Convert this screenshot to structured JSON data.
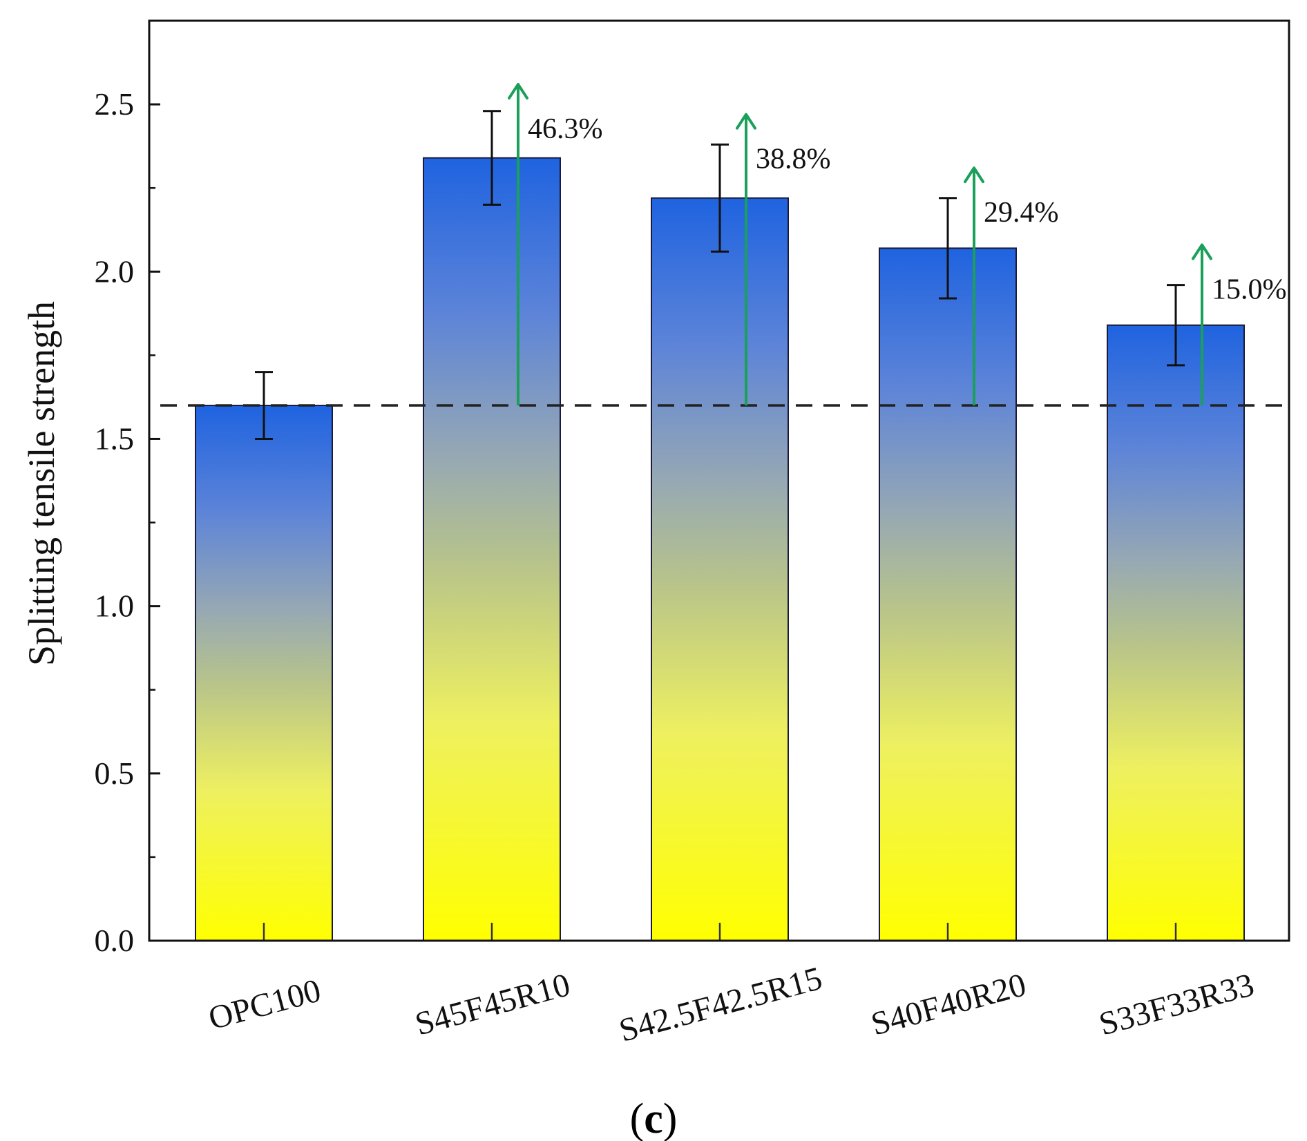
{
  "chart_data": {
    "type": "bar",
    "title": "",
    "xlabel": "",
    "ylabel": "Splitting tensile strength",
    "ylim": [
      0,
      2.75
    ],
    "yticks": [
      0.0,
      0.5,
      1.0,
      1.5,
      2.0,
      2.5
    ],
    "ytick_labels": [
      "0.0",
      "0.5",
      "1.0",
      "1.5",
      "2.0",
      "2.5"
    ],
    "categories": [
      "OPC100",
      "S45F45R10",
      "S42.5F42.5R15",
      "S40F40R20",
      "S33F33R33"
    ],
    "values": [
      1.6,
      2.34,
      2.22,
      2.07,
      1.84
    ],
    "error": [
      0.1,
      0.14,
      0.16,
      0.15,
      0.12
    ],
    "baseline": 1.6,
    "increase_labels": [
      "",
      "46.3%",
      "38.8%",
      "29.4%",
      "15.0%"
    ],
    "arrow_tops": [
      null,
      2.56,
      2.47,
      2.31,
      2.08
    ],
    "panel_label_open": "(",
    "panel_label_letter": "c",
    "panel_label_close": ")"
  },
  "colors": {
    "bar_top": "#1f63e0",
    "bar_mid": "#9fb0a8",
    "bar_bottom": "#ffff00",
    "arrow": "#1aa05a",
    "axis": "#111111",
    "baseline": "#222222"
  }
}
